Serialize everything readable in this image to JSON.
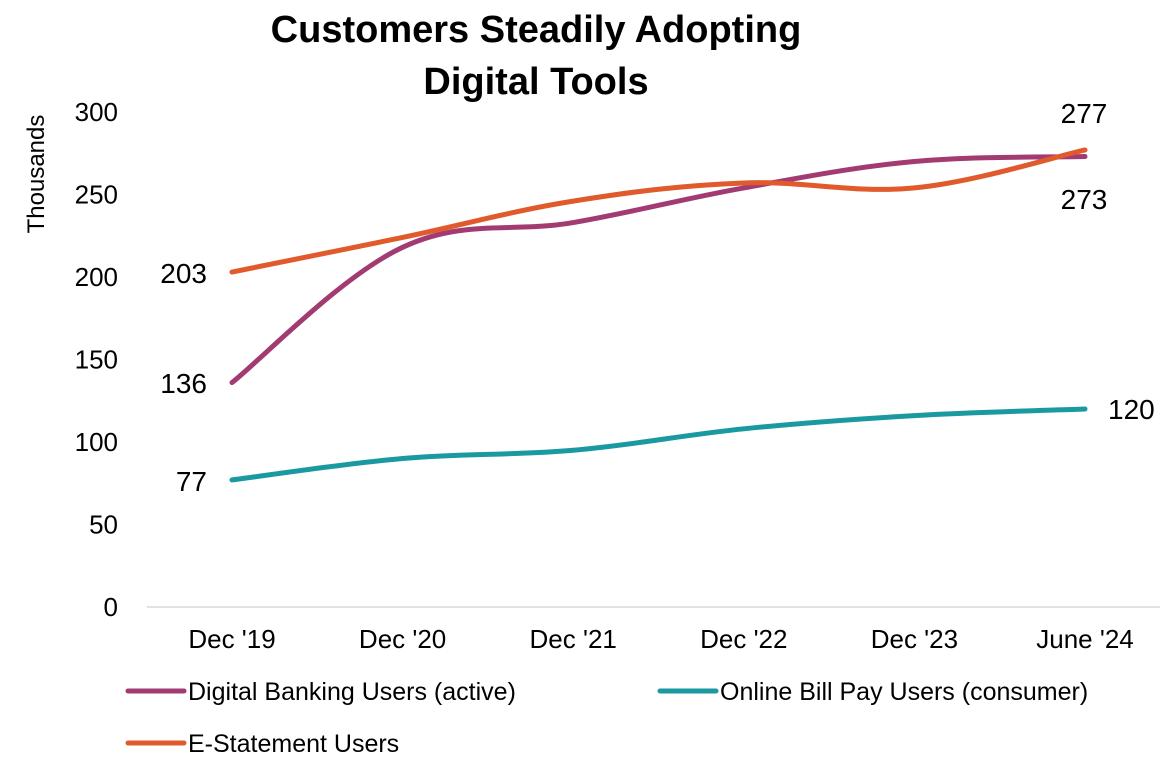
{
  "chart_data": {
    "type": "line",
    "title_lines": [
      "Customers Steadily Adopting",
      "Digital Tools"
    ],
    "ylabel": "Thousands",
    "xlabel": "",
    "categories": [
      "Dec '19",
      "Dec '20",
      "Dec '21",
      "Dec '22",
      "Dec '23",
      "June '24"
    ],
    "ylim": [
      0,
      300
    ],
    "yticks": [
      "0",
      "50",
      "100",
      "150",
      "200",
      "250",
      "300"
    ],
    "grid": false,
    "legend_position": "bottom",
    "series": [
      {
        "name": "Digital Banking Users (active)",
        "color": "#A23B72",
        "values": [
          136,
          218,
          233,
          254,
          270,
          273
        ],
        "start_label": "136",
        "end_label": "273"
      },
      {
        "name": "Online Bill Pay Users (consumer)",
        "color": "#1A9AA0",
        "values": [
          77,
          90,
          95,
          108,
          116,
          120
        ],
        "start_label": "77",
        "end_label": "120"
      },
      {
        "name": "E-Statement Users",
        "color": "#E05A2B",
        "values": [
          203,
          224,
          246,
          257,
          254,
          277
        ],
        "start_label": "203",
        "end_label": "277"
      }
    ]
  }
}
